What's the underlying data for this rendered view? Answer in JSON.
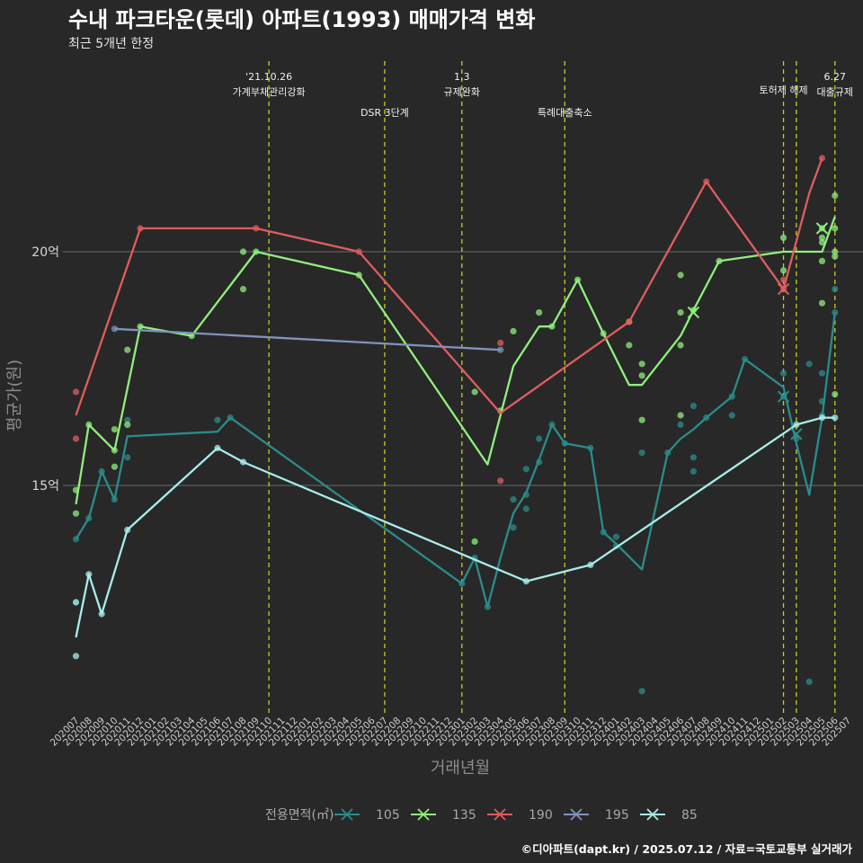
{
  "header": {
    "title": "수내 파크타운(롯데) 아파트(1993) 매매가격 변화",
    "subtitle": "최근 5개년 한정",
    "caption": "©디아파트(dapt.kr) / 2025.07.12 / 자료=국토교통부 실거래가"
  },
  "chart_data": {
    "type": "line",
    "title": "수내 파크타운(롯데) 아파트(1993) 매매가격 변화",
    "subtitle": "최근 5개년 한정",
    "xlabel": "거래년월",
    "ylabel": "평균가(원)",
    "ylim": [
      10.3,
      21.4
    ],
    "yticks": [
      {
        "v": 15,
        "label": "15억"
      },
      {
        "v": 20,
        "label": "20억"
      }
    ],
    "grid": "horizontal major lines",
    "categories": [
      "202007",
      "202008",
      "202009",
      "202010",
      "202011",
      "202012",
      "202101",
      "202102",
      "202103",
      "202104",
      "202105",
      "202106",
      "202107",
      "202108",
      "202109",
      "202110",
      "202111",
      "202112",
      "202201",
      "202202",
      "202203",
      "202204",
      "202205",
      "202206",
      "202207",
      "202208",
      "202209",
      "202210",
      "202211",
      "202212",
      "202301",
      "202302",
      "202303",
      "202304",
      "202305",
      "202306",
      "202307",
      "202308",
      "202309",
      "202310",
      "202311",
      "202312",
      "202401",
      "202402",
      "202403",
      "202404",
      "202405",
      "202406",
      "202407",
      "202408",
      "202409",
      "202410",
      "202411",
      "202412",
      "202501",
      "202502",
      "202503",
      "202504",
      "202505",
      "202506",
      "202507"
    ],
    "events": [
      {
        "x": "202110",
        "lines": [
          "'21.10.26",
          "가계부채관리강화"
        ],
        "row": 1
      },
      {
        "x": "202207",
        "lines": [
          "DSR 3단계"
        ],
        "row": 2
      },
      {
        "x": "202301",
        "lines": [
          "1.3",
          "규제완화"
        ],
        "row": 1
      },
      {
        "x": "202309",
        "lines": [
          "특례대출축소"
        ],
        "row": 2
      },
      {
        "x": "202502",
        "lines": [
          "토허제 해제"
        ],
        "row": 0
      },
      {
        "x": "202503",
        "lines": [],
        "row": 0
      },
      {
        "x": "202506",
        "lines": [
          "6.27",
          "대출규제"
        ],
        "row": 1
      }
    ],
    "legend": {
      "title": "전용면적(㎡)",
      "position": "bottom"
    },
    "series": [
      {
        "name": "105",
        "color": "#2a8c8c",
        "line": [
          [
            "202007",
            13.85
          ],
          [
            "202008",
            14.3
          ],
          [
            "202009",
            15.3
          ],
          [
            "202010",
            14.7
          ],
          [
            "202011",
            16.05
          ],
          [
            "202106",
            16.15
          ],
          [
            "202107",
            16.45
          ],
          [
            "202301",
            12.9
          ],
          [
            "202302",
            13.45
          ],
          [
            "202303",
            12.4
          ],
          [
            "202304",
            13.45
          ],
          [
            "202305",
            14.4
          ],
          [
            "202306",
            14.85
          ],
          [
            "202307",
            15.55
          ],
          [
            "202308",
            16.3
          ],
          [
            "202309",
            15.9
          ],
          [
            "202311",
            15.8
          ],
          [
            "202312",
            14.0
          ],
          [
            "202401",
            13.75
          ],
          [
            "202403",
            13.2
          ],
          [
            "202405",
            15.7
          ],
          [
            "202406",
            16.0
          ],
          [
            "202407",
            16.2
          ],
          [
            "202408",
            16.45
          ],
          [
            "202410",
            16.9
          ],
          [
            "202411",
            17.7
          ],
          [
            "202412",
            17.5
          ],
          [
            "202501",
            17.3
          ],
          [
            "202502",
            17.1
          ],
          [
            "202503",
            15.9
          ],
          [
            "202504",
            14.8
          ],
          [
            "202505",
            16.45
          ],
          [
            "202506",
            18.7
          ]
        ],
        "points": [
          [
            "202007",
            13.85
          ],
          [
            "202007",
            12.5
          ],
          [
            "202008",
            14.3
          ],
          [
            "202009",
            15.3
          ],
          [
            "202010",
            14.7
          ],
          [
            "202011",
            16.4
          ],
          [
            "202011",
            15.6
          ],
          [
            "202106",
            16.4
          ],
          [
            "202107",
            16.45
          ],
          [
            "202301",
            12.9
          ],
          [
            "202302",
            13.45
          ],
          [
            "202303",
            12.4
          ],
          [
            "202305",
            14.7
          ],
          [
            "202305",
            14.1
          ],
          [
            "202306",
            15.35
          ],
          [
            "202306",
            14.8
          ],
          [
            "202306",
            14.5
          ],
          [
            "202307",
            15.5
          ],
          [
            "202307",
            16.0
          ],
          [
            "202308",
            16.3
          ],
          [
            "202309",
            15.9
          ],
          [
            "202311",
            15.8
          ],
          [
            "202312",
            14.0
          ],
          [
            "202401",
            13.9
          ],
          [
            "202401",
            13.7
          ],
          [
            "202403",
            15.7
          ],
          [
            "202403",
            10.6
          ],
          [
            "202405",
            15.7
          ],
          [
            "202406",
            16.3
          ],
          [
            "202407",
            16.7
          ],
          [
            "202407",
            15.6
          ],
          [
            "202407",
            15.3
          ],
          [
            "202408",
            16.45
          ],
          [
            "202410",
            16.9
          ],
          [
            "202410",
            16.5
          ],
          [
            "202411",
            17.7
          ],
          [
            "202502",
            17.4
          ],
          [
            "202502",
            16.9
          ],
          [
            "202503",
            16.0
          ],
          [
            "202504",
            17.6
          ],
          [
            "202504",
            10.8
          ],
          [
            "202505",
            16.5
          ],
          [
            "202505",
            17.4
          ],
          [
            "202505",
            16.8
          ],
          [
            "202506",
            19.2
          ],
          [
            "202506",
            18.7
          ]
        ]
      },
      {
        "name": "135",
        "color": "#90ee7e",
        "line": [
          [
            "202007",
            14.6
          ],
          [
            "202008",
            16.3
          ],
          [
            "202010",
            15.75
          ],
          [
            "202012",
            18.4
          ],
          [
            "202104",
            18.2
          ],
          [
            "202109",
            20.0
          ],
          [
            "202205",
            19.5
          ],
          [
            "202303",
            15.45
          ],
          [
            "202305",
            17.55
          ],
          [
            "202307",
            18.4
          ],
          [
            "202308",
            18.4
          ],
          [
            "202310",
            19.4
          ],
          [
            "202312",
            18.25
          ],
          [
            "202402",
            17.15
          ],
          [
            "202403",
            17.15
          ],
          [
            "202406",
            18.2
          ],
          [
            "202407",
            18.75
          ],
          [
            "202409",
            19.8
          ],
          [
            "202502",
            20.0
          ],
          [
            "202505",
            20.0
          ],
          [
            "202506",
            20.75
          ]
        ],
        "points": [
          [
            "202007",
            14.9
          ],
          [
            "202007",
            14.4
          ],
          [
            "202008",
            16.3
          ],
          [
            "202010",
            16.2
          ],
          [
            "202010",
            15.4
          ],
          [
            "202010",
            15.75
          ],
          [
            "202011",
            16.3
          ],
          [
            "202011",
            17.9
          ],
          [
            "202012",
            18.4
          ],
          [
            "202104",
            18.2
          ],
          [
            "202108",
            20.0
          ],
          [
            "202108",
            19.2
          ],
          [
            "202109",
            20.0
          ],
          [
            "202205",
            19.5
          ],
          [
            "202302",
            17.0
          ],
          [
            "202302",
            13.8
          ],
          [
            "202304",
            16.6
          ],
          [
            "202305",
            18.3
          ],
          [
            "202307",
            18.7
          ],
          [
            "202308",
            18.4
          ],
          [
            "202310",
            19.4
          ],
          [
            "202312",
            18.25
          ],
          [
            "202402",
            18.0
          ],
          [
            "202402",
            18.5
          ],
          [
            "202403",
            17.6
          ],
          [
            "202403",
            17.35
          ],
          [
            "202403",
            16.4
          ],
          [
            "202406",
            18.0
          ],
          [
            "202406",
            19.5
          ],
          [
            "202406",
            18.7
          ],
          [
            "202406",
            16.5
          ],
          [
            "202407",
            18.75
          ],
          [
            "202409",
            19.8
          ],
          [
            "202502",
            20.3
          ],
          [
            "202502",
            19.6
          ],
          [
            "202505",
            20.5
          ],
          [
            "202505",
            20.3
          ],
          [
            "202505",
            20.2
          ],
          [
            "202505",
            19.8
          ],
          [
            "202505",
            18.9
          ],
          [
            "202506",
            20.5
          ],
          [
            "202506",
            19.9
          ],
          [
            "202506",
            21.2
          ],
          [
            "202506",
            16.95
          ],
          [
            "202506",
            20.0
          ]
        ]
      },
      {
        "name": "190",
        "color": "#e05d5d",
        "line": [
          [
            "202007",
            16.5
          ],
          [
            "202012",
            20.5
          ],
          [
            "202109",
            20.5
          ],
          [
            "202205",
            20.0
          ],
          [
            "202304",
            16.55
          ],
          [
            "202402",
            18.5
          ],
          [
            "202408",
            21.5
          ],
          [
            "202502",
            19.2
          ],
          [
            "202504",
            21.25
          ],
          [
            "202505",
            22.0
          ]
        ],
        "points": [
          [
            "202007",
            17.0
          ],
          [
            "202007",
            16.0
          ],
          [
            "202012",
            20.5
          ],
          [
            "202109",
            20.5
          ],
          [
            "202205",
            20.0
          ],
          [
            "202304",
            18.05
          ],
          [
            "202304",
            15.1
          ],
          [
            "202402",
            18.5
          ],
          [
            "202408",
            21.5
          ],
          [
            "202502",
            19.4
          ],
          [
            "202502",
            19.2
          ],
          [
            "202505",
            22.0
          ]
        ]
      },
      {
        "name": "195",
        "color": "#7f93bd",
        "line": [
          [
            "202010",
            18.35
          ],
          [
            "202304",
            17.9
          ]
        ],
        "points": [
          [
            "202010",
            18.35
          ],
          [
            "202304",
            17.9
          ]
        ]
      },
      {
        "name": "85",
        "color": "#a8ecec",
        "line": [
          [
            "202007",
            11.75
          ],
          [
            "202008",
            13.1
          ],
          [
            "202009",
            12.25
          ],
          [
            "202011",
            14.05
          ],
          [
            "202106",
            15.8
          ],
          [
            "202108",
            15.5
          ],
          [
            "202306",
            12.95
          ],
          [
            "202311",
            13.3
          ],
          [
            "202503",
            16.3
          ],
          [
            "202505",
            16.45
          ],
          [
            "202506",
            16.45
          ]
        ],
        "points": [
          [
            "202007",
            11.35
          ],
          [
            "202007",
            12.5
          ],
          [
            "202008",
            13.1
          ],
          [
            "202009",
            12.25
          ],
          [
            "202011",
            14.05
          ],
          [
            "202106",
            15.8
          ],
          [
            "202108",
            15.5
          ],
          [
            "202306",
            12.95
          ],
          [
            "202311",
            13.3
          ],
          [
            "202503",
            16.3
          ],
          [
            "202505",
            16.45
          ],
          [
            "202506",
            16.45
          ]
        ]
      }
    ],
    "markers": [
      {
        "series": "105",
        "x": "202502",
        "y": 16.9
      },
      {
        "series": "105",
        "x": "202503",
        "y": 16.1
      },
      {
        "series": "135",
        "x": "202407",
        "y": 18.7
      },
      {
        "series": "135",
        "x": "202505",
        "y": 20.5
      },
      {
        "series": "190",
        "x": "202502",
        "y": 19.2
      }
    ]
  }
}
